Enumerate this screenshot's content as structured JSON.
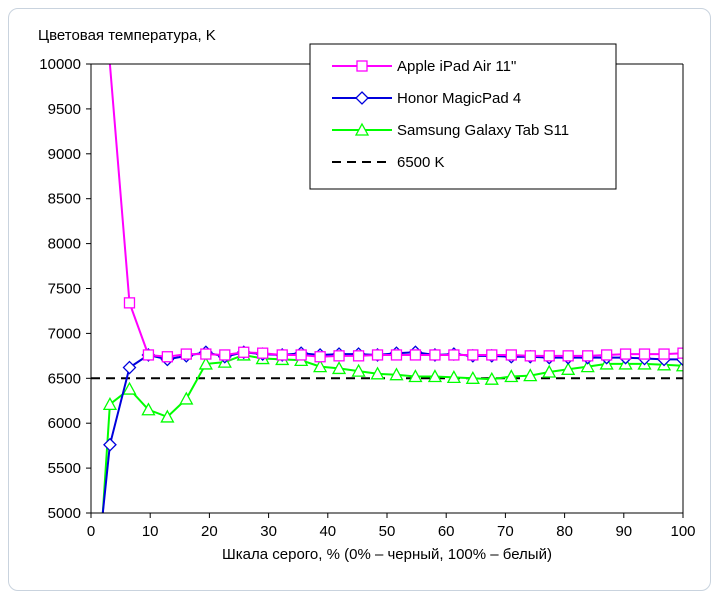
{
  "chart_data": {
    "type": "line",
    "title": "",
    "ylabel": "Цветовая температура, K",
    "xlabel": "Шкала серого, % (0% – черный, 100% – белый)",
    "xlim": [
      0,
      100
    ],
    "ylim": [
      5000,
      10000
    ],
    "xticks": [
      0,
      10,
      20,
      30,
      40,
      50,
      60,
      70,
      80,
      90,
      100
    ],
    "yticks": [
      5000,
      5500,
      6000,
      6500,
      7000,
      7500,
      8000,
      8500,
      9000,
      9500,
      10000
    ],
    "grid": "horizontal",
    "legend_position": "top-right",
    "series": [
      {
        "name": "Apple iPad Air 11\"",
        "color": "#ff00ff",
        "marker": "square",
        "x": [
          3.2,
          6.5,
          9.7,
          12.9,
          16.1,
          19.4,
          22.6,
          25.8,
          29.0,
          32.3,
          35.5,
          38.7,
          41.9,
          45.2,
          48.4,
          51.6,
          54.8,
          58.1,
          61.3,
          64.5,
          67.7,
          71.0,
          74.2,
          77.4,
          80.6,
          83.9,
          87.1,
          90.3,
          93.5,
          96.8,
          100.0
        ],
        "values": [
          10000,
          7340,
          6760,
          6740,
          6770,
          6770,
          6760,
          6790,
          6780,
          6760,
          6760,
          6740,
          6750,
          6750,
          6760,
          6760,
          6760,
          6760,
          6760,
          6760,
          6760,
          6760,
          6750,
          6750,
          6750,
          6750,
          6760,
          6770,
          6770,
          6770,
          6780
        ]
      },
      {
        "name": "Honor MagicPad 4",
        "color": "#0000dd",
        "marker": "diamond",
        "x": [
          2.0,
          3.2,
          6.5,
          9.7,
          12.9,
          16.1,
          19.4,
          22.6,
          25.8,
          29.0,
          32.3,
          35.5,
          38.7,
          41.9,
          45.2,
          48.4,
          51.6,
          54.8,
          58.1,
          61.3,
          64.5,
          67.7,
          71.0,
          74.2,
          77.4,
          80.6,
          83.9,
          87.1,
          90.3,
          93.5,
          96.8,
          100.0
        ],
        "values": [
          5000,
          5760,
          6620,
          6760,
          6710,
          6750,
          6790,
          6740,
          6790,
          6770,
          6760,
          6780,
          6760,
          6770,
          6770,
          6760,
          6780,
          6790,
          6760,
          6770,
          6750,
          6750,
          6740,
          6740,
          6730,
          6730,
          6730,
          6730,
          6730,
          6720,
          6710,
          6710
        ]
      },
      {
        "name": "Samsung Galaxy Tab S11",
        "color": "#00ff00",
        "marker": "triangle",
        "x": [
          2.0,
          3.2,
          6.5,
          9.7,
          12.9,
          16.1,
          19.4,
          22.6,
          25.8,
          29.0,
          32.3,
          35.5,
          38.7,
          41.9,
          45.2,
          48.4,
          51.6,
          54.8,
          58.1,
          61.3,
          64.5,
          67.7,
          71.0,
          74.2,
          77.4,
          80.6,
          83.9,
          87.1,
          90.3,
          93.5,
          96.8,
          100.0
        ],
        "values": [
          5000,
          6210,
          6380,
          6150,
          6070,
          6270,
          6660,
          6680,
          6760,
          6720,
          6710,
          6700,
          6630,
          6610,
          6580,
          6550,
          6540,
          6520,
          6520,
          6510,
          6500,
          6490,
          6520,
          6530,
          6570,
          6600,
          6630,
          6660,
          6660,
          6660,
          6650,
          6640
        ]
      },
      {
        "name": "6500 K",
        "color": "#000000",
        "marker": "none",
        "dash": true,
        "x": [
          0,
          100
        ],
        "values": [
          6500,
          6500
        ]
      }
    ]
  }
}
